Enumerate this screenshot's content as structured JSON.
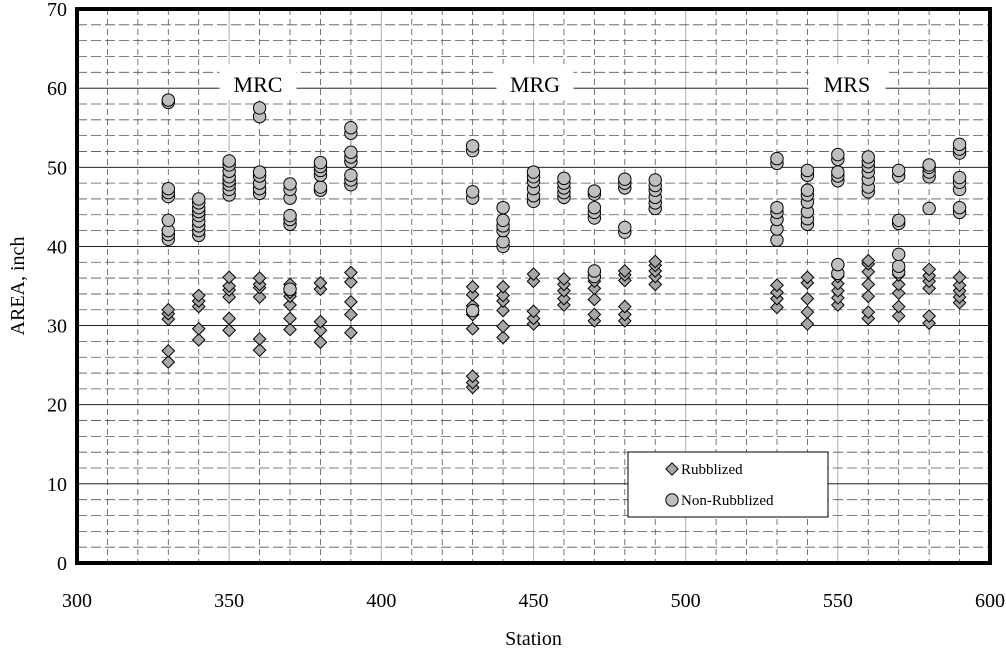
{
  "chart_data": {
    "type": "scatter",
    "xlabel": "Station",
    "ylabel": "AREA, inch",
    "xlim": [
      300,
      600
    ],
    "ylim": [
      0,
      70
    ],
    "x_ticks": [
      300,
      350,
      400,
      450,
      500,
      550,
      600
    ],
    "y_ticks": [
      0,
      10,
      20,
      30,
      40,
      50,
      60,
      70
    ],
    "grid": "major solid, minor dashed",
    "legend_position": "lower-right",
    "annotations": [
      "MRC",
      "MRG",
      "MRS"
    ],
    "series": [
      {
        "name": "Rubblized",
        "marker": "diamond",
        "color": "#a6a6a6",
        "points": [
          [
            330,
            25.4
          ],
          [
            330,
            26.8
          ],
          [
            330,
            30.8
          ],
          [
            330,
            31.5
          ],
          [
            330,
            32.0
          ],
          [
            340,
            28.2
          ],
          [
            340,
            29.6
          ],
          [
            340,
            32.4
          ],
          [
            340,
            33.1
          ],
          [
            340,
            33.8
          ],
          [
            350,
            29.4
          ],
          [
            350,
            30.9
          ],
          [
            350,
            33.6
          ],
          [
            350,
            34.5
          ],
          [
            350,
            35.0
          ],
          [
            350,
            36.1
          ],
          [
            360,
            26.9
          ],
          [
            360,
            28.3
          ],
          [
            360,
            33.6
          ],
          [
            360,
            34.8
          ],
          [
            360,
            35.2
          ],
          [
            360,
            36.0
          ],
          [
            370,
            29.5
          ],
          [
            370,
            30.9
          ],
          [
            370,
            32.6
          ],
          [
            370,
            33.7
          ],
          [
            370,
            34.2
          ],
          [
            370,
            35.2
          ],
          [
            380,
            27.9
          ],
          [
            380,
            29.4
          ],
          [
            380,
            30.5
          ],
          [
            380,
            34.6
          ],
          [
            380,
            35.4
          ],
          [
            390,
            29.1
          ],
          [
            390,
            31.4
          ],
          [
            390,
            33.0
          ],
          [
            390,
            35.5
          ],
          [
            390,
            36.7
          ],
          [
            430,
            22.2
          ],
          [
            430,
            22.8
          ],
          [
            430,
            23.6
          ],
          [
            430,
            29.6
          ],
          [
            430,
            31.4
          ],
          [
            430,
            32.5
          ],
          [
            430,
            33.9
          ],
          [
            430,
            34.9
          ],
          [
            440,
            28.5
          ],
          [
            440,
            29.9
          ],
          [
            440,
            31.9
          ],
          [
            440,
            33.1
          ],
          [
            440,
            33.8
          ],
          [
            440,
            34.9
          ],
          [
            450,
            30.2
          ],
          [
            450,
            30.9
          ],
          [
            450,
            31.8
          ],
          [
            450,
            35.6
          ],
          [
            450,
            36.5
          ],
          [
            460,
            32.6
          ],
          [
            460,
            33.4
          ],
          [
            460,
            34.4
          ],
          [
            460,
            35.2
          ],
          [
            460,
            35.9
          ],
          [
            470,
            30.6
          ],
          [
            470,
            31.4
          ],
          [
            470,
            33.3
          ],
          [
            470,
            34.7
          ],
          [
            470,
            35.6
          ],
          [
            470,
            36.7
          ],
          [
            480,
            30.6
          ],
          [
            480,
            31.4
          ],
          [
            480,
            32.4
          ],
          [
            480,
            35.7
          ],
          [
            480,
            36.4
          ],
          [
            480,
            36.9
          ],
          [
            490,
            35.2
          ],
          [
            490,
            36.2
          ],
          [
            490,
            36.9
          ],
          [
            490,
            37.6
          ],
          [
            490,
            38.1
          ],
          [
            530,
            32.3
          ],
          [
            530,
            33.4
          ],
          [
            530,
            34.2
          ],
          [
            530,
            35.1
          ],
          [
            540,
            30.2
          ],
          [
            540,
            31.7
          ],
          [
            540,
            33.4
          ],
          [
            540,
            35.4
          ],
          [
            540,
            36.1
          ],
          [
            550,
            32.6
          ],
          [
            550,
            33.5
          ],
          [
            550,
            34.4
          ],
          [
            550,
            35.3
          ],
          [
            550,
            36.2
          ],
          [
            550,
            37.6
          ],
          [
            560,
            30.9
          ],
          [
            560,
            31.7
          ],
          [
            560,
            33.7
          ],
          [
            560,
            35.2
          ],
          [
            560,
            36.8
          ],
          [
            560,
            37.8
          ],
          [
            560,
            38.2
          ],
          [
            570,
            31.2
          ],
          [
            570,
            32.4
          ],
          [
            570,
            34.1
          ],
          [
            570,
            35.2
          ],
          [
            570,
            36.4
          ],
          [
            580,
            30.3
          ],
          [
            580,
            31.2
          ],
          [
            580,
            34.7
          ],
          [
            580,
            35.6
          ],
          [
            580,
            36.3
          ],
          [
            580,
            37.1
          ],
          [
            590,
            32.9
          ],
          [
            590,
            33.6
          ],
          [
            590,
            34.4
          ],
          [
            590,
            35.1
          ],
          [
            590,
            36.1
          ]
        ]
      },
      {
        "name": "Non-Rubblized",
        "marker": "circle",
        "color": "#bfbfbf",
        "points": [
          [
            330,
            40.9
          ],
          [
            330,
            41.5
          ],
          [
            330,
            42.0
          ],
          [
            330,
            43.3
          ],
          [
            330,
            46.3
          ],
          [
            330,
            46.8
          ],
          [
            330,
            47.3
          ],
          [
            330,
            58.2
          ],
          [
            330,
            58.5
          ],
          [
            340,
            41.4
          ],
          [
            340,
            42.0
          ],
          [
            340,
            42.6
          ],
          [
            340,
            43.2
          ],
          [
            340,
            43.9
          ],
          [
            340,
            44.4
          ],
          [
            340,
            44.9
          ],
          [
            340,
            45.5
          ],
          [
            340,
            46.0
          ],
          [
            350,
            46.5
          ],
          [
            350,
            47.2
          ],
          [
            350,
            47.8
          ],
          [
            350,
            48.3
          ],
          [
            350,
            48.8
          ],
          [
            350,
            49.5
          ],
          [
            350,
            50.3
          ],
          [
            350,
            50.8
          ],
          [
            360,
            46.7
          ],
          [
            360,
            47.3
          ],
          [
            360,
            48.0
          ],
          [
            360,
            48.9
          ],
          [
            360,
            49.4
          ],
          [
            360,
            56.4
          ],
          [
            360,
            57.5
          ],
          [
            370,
            42.8
          ],
          [
            370,
            43.4
          ],
          [
            370,
            43.9
          ],
          [
            370,
            46.1
          ],
          [
            370,
            47.2
          ],
          [
            370,
            47.9
          ],
          [
            370,
            34.6
          ],
          [
            380,
            47.1
          ],
          [
            380,
            47.5
          ],
          [
            380,
            49.0
          ],
          [
            380,
            49.6
          ],
          [
            380,
            50.1
          ],
          [
            380,
            50.6
          ],
          [
            390,
            47.8
          ],
          [
            390,
            48.4
          ],
          [
            390,
            49.0
          ],
          [
            390,
            50.7
          ],
          [
            390,
            51.3
          ],
          [
            390,
            51.9
          ],
          [
            390,
            54.3
          ],
          [
            390,
            55.0
          ],
          [
            430,
            46.1
          ],
          [
            430,
            46.9
          ],
          [
            430,
            52.1
          ],
          [
            430,
            52.7
          ],
          [
            430,
            31.9
          ],
          [
            440,
            40.0
          ],
          [
            440,
            40.6
          ],
          [
            440,
            42.0
          ],
          [
            440,
            42.6
          ],
          [
            440,
            43.3
          ],
          [
            440,
            44.9
          ],
          [
            450,
            45.7
          ],
          [
            450,
            46.4
          ],
          [
            450,
            47.3
          ],
          [
            450,
            48.2
          ],
          [
            450,
            48.8
          ],
          [
            450,
            49.4
          ],
          [
            460,
            46.2
          ],
          [
            460,
            46.8
          ],
          [
            460,
            47.4
          ],
          [
            460,
            48.0
          ],
          [
            460,
            48.6
          ],
          [
            470,
            43.6
          ],
          [
            470,
            44.3
          ],
          [
            470,
            44.9
          ],
          [
            470,
            46.6
          ],
          [
            470,
            47.0
          ],
          [
            470,
            36.2
          ],
          [
            470,
            36.9
          ],
          [
            480,
            41.8
          ],
          [
            480,
            42.4
          ],
          [
            480,
            47.4
          ],
          [
            480,
            48.0
          ],
          [
            480,
            48.5
          ],
          [
            490,
            44.8
          ],
          [
            490,
            45.5
          ],
          [
            490,
            46.2
          ],
          [
            490,
            47.1
          ],
          [
            490,
            47.7
          ],
          [
            490,
            48.4
          ],
          [
            530,
            40.8
          ],
          [
            530,
            42.2
          ],
          [
            530,
            43.4
          ],
          [
            530,
            44.3
          ],
          [
            530,
            44.9
          ],
          [
            530,
            50.5
          ],
          [
            530,
            51.1
          ],
          [
            540,
            42.8
          ],
          [
            540,
            43.5
          ],
          [
            540,
            44.4
          ],
          [
            540,
            45.6
          ],
          [
            540,
            46.5
          ],
          [
            540,
            47.1
          ],
          [
            540,
            49.0
          ],
          [
            540,
            49.6
          ],
          [
            550,
            36.6
          ],
          [
            550,
            37.7
          ],
          [
            550,
            48.3
          ],
          [
            550,
            48.9
          ],
          [
            550,
            49.4
          ],
          [
            550,
            51.0
          ],
          [
            550,
            51.6
          ],
          [
            560,
            46.9
          ],
          [
            560,
            47.5
          ],
          [
            560,
            48.5
          ],
          [
            560,
            49.4
          ],
          [
            560,
            50.1
          ],
          [
            560,
            50.7
          ],
          [
            560,
            51.3
          ],
          [
            570,
            36.8
          ],
          [
            570,
            37.5
          ],
          [
            570,
            39.0
          ],
          [
            570,
            42.9
          ],
          [
            570,
            43.3
          ],
          [
            570,
            48.9
          ],
          [
            570,
            49.6
          ],
          [
            580,
            44.8
          ],
          [
            580,
            48.8
          ],
          [
            580,
            49.4
          ],
          [
            580,
            50.0
          ],
          [
            580,
            50.3
          ],
          [
            590,
            44.3
          ],
          [
            590,
            44.9
          ],
          [
            590,
            47.2
          ],
          [
            590,
            48.1
          ],
          [
            590,
            48.7
          ],
          [
            590,
            51.8
          ],
          [
            590,
            52.3
          ],
          [
            590,
            52.9
          ]
        ]
      }
    ]
  }
}
